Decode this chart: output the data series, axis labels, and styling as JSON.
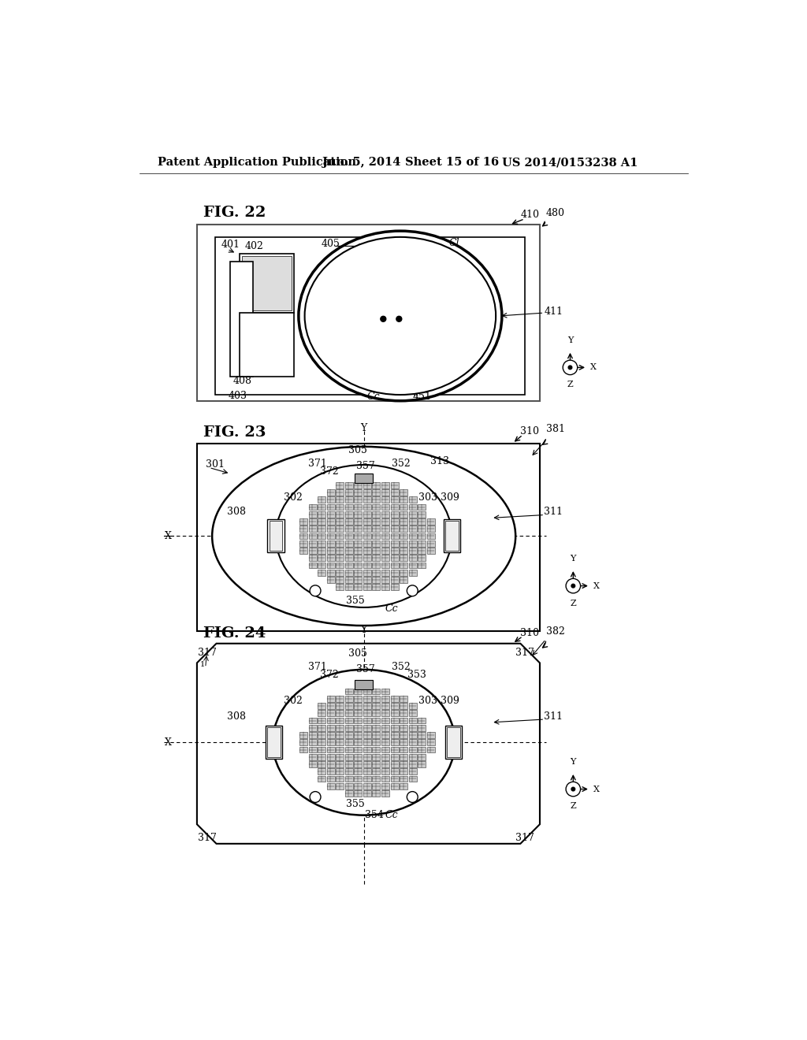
{
  "background_color": "#ffffff",
  "header_text": "Patent Application Publication",
  "header_date": "Jun. 5, 2014",
  "header_sheet": "Sheet 15 of 16",
  "header_patent": "US 2014/0153238 A1",
  "fig22_label": "FIG. 22",
  "fig23_label": "FIG. 23",
  "fig24_label": "FIG. 24"
}
